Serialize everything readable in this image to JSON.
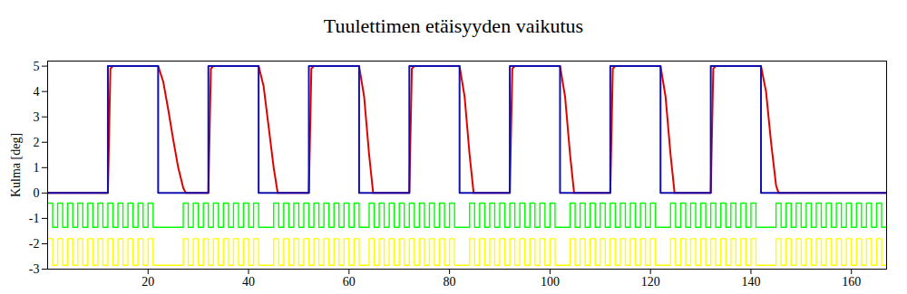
{
  "chart_data": {
    "type": "line",
    "title": "Tuulettimen etäisyyden vaikutus",
    "ylabel": "Kulma [deg]",
    "xlim": [
      0,
      167
    ],
    "xticks": [
      20,
      40,
      60,
      80,
      100,
      120,
      140,
      160
    ],
    "ylim": [
      -3,
      5.2
    ],
    "yticks": [
      -3,
      -2,
      -1,
      0,
      1,
      2,
      3,
      4,
      5
    ],
    "grid": false,
    "series": [
      {
        "color": "#e00000",
        "line_style": "solid",
        "x": [
          0,
          12,
          12.5,
          13,
          22,
          23,
          24,
          25,
          26,
          27,
          27.5,
          32,
          32.5,
          33,
          42,
          43,
          44,
          45,
          45.8,
          52,
          52.5,
          53,
          62,
          63,
          64,
          64.8,
          72,
          72.5,
          73,
          82,
          83,
          84,
          84.8,
          92,
          92.5,
          93,
          102,
          103,
          104,
          104.8,
          112,
          112.5,
          113,
          122,
          123,
          124,
          124.8,
          132,
          132.5,
          133,
          142,
          143,
          144,
          145,
          145.5,
          167
        ],
        "values": [
          0,
          0,
          4.9,
          5,
          5,
          4.4,
          3.3,
          2.1,
          1,
          0.2,
          0,
          0,
          4.9,
          5,
          5,
          4.2,
          2.6,
          1,
          0,
          0,
          4.9,
          5,
          5,
          3.8,
          1.5,
          0,
          0,
          4.9,
          5,
          5,
          3.8,
          1.5,
          0,
          0,
          4.9,
          5,
          5,
          3.8,
          1.5,
          0,
          0,
          4.9,
          5,
          5,
          3.8,
          1.5,
          0,
          0,
          4.9,
          5,
          5,
          4,
          2,
          0.3,
          0,
          0
        ]
      },
      {
        "color": "#1010b0",
        "line_style": "solid",
        "x": [
          0,
          12,
          12,
          22,
          22,
          32,
          32,
          42,
          42,
          52,
          52,
          62,
          62,
          72,
          72,
          82,
          82,
          92,
          92,
          102,
          102,
          112,
          112,
          122,
          122,
          132,
          132,
          142,
          142,
          167
        ],
        "values": [
          0,
          0,
          5,
          5,
          0,
          0,
          5,
          5,
          0,
          0,
          5,
          5,
          0,
          0,
          5,
          5,
          0,
          0,
          5,
          5,
          0,
          0,
          5,
          5,
          0,
          0,
          5,
          5,
          0,
          0
        ]
      },
      {
        "color": "#00ff00",
        "line_style": "step",
        "x": [
          0,
          1,
          2,
          3,
          4,
          5,
          6,
          7,
          8,
          9,
          10,
          11,
          12,
          13,
          14,
          15,
          16,
          17,
          18,
          19,
          20,
          21,
          22,
          27,
          28,
          29,
          30,
          31,
          32,
          33,
          34,
          35,
          36,
          37,
          38,
          39,
          40,
          41,
          42,
          45,
          46,
          47,
          48,
          49,
          50,
          51,
          52,
          53,
          54,
          55,
          56,
          57,
          58,
          59,
          60,
          61,
          62,
          64,
          65,
          66,
          67,
          68,
          69,
          70,
          71,
          72,
          73,
          74,
          75,
          76,
          77,
          78,
          79,
          80,
          81,
          82,
          84,
          85,
          86,
          87,
          88,
          89,
          90,
          91,
          92,
          93,
          94,
          95,
          96,
          97,
          98,
          99,
          100,
          101,
          102,
          104,
          105,
          106,
          107,
          108,
          109,
          110,
          111,
          112,
          113,
          114,
          115,
          116,
          117,
          118,
          119,
          120,
          121,
          122,
          124,
          125,
          126,
          127,
          128,
          129,
          130,
          131,
          132,
          133,
          134,
          135,
          136,
          137,
          138,
          139,
          140,
          141,
          142,
          145,
          146,
          147,
          148,
          149,
          150,
          151,
          152,
          153,
          154,
          155,
          156,
          157,
          158,
          159,
          160,
          161,
          162,
          163,
          164,
          165,
          166,
          167
        ],
        "values": [
          -0.4,
          -1.35,
          -0.4,
          -1.35,
          -0.4,
          -1.35,
          -0.4,
          -1.35,
          -0.4,
          -1.35,
          -0.4,
          -1.35,
          -0.4,
          -1.35,
          -0.4,
          -1.35,
          -0.4,
          -1.35,
          -0.4,
          -1.35,
          -0.4,
          -1.35,
          -1.35,
          -0.4,
          -1.35,
          -0.4,
          -1.35,
          -0.4,
          -1.35,
          -0.4,
          -1.35,
          -0.4,
          -1.35,
          -0.4,
          -1.35,
          -0.4,
          -1.35,
          -0.4,
          -1.35,
          -0.4,
          -1.35,
          -0.4,
          -1.35,
          -0.4,
          -1.35,
          -0.4,
          -1.35,
          -0.4,
          -1.35,
          -0.4,
          -1.35,
          -0.4,
          -1.35,
          -0.4,
          -1.35,
          -0.4,
          -1.35,
          -0.4,
          -1.35,
          -0.4,
          -1.35,
          -0.4,
          -1.35,
          -0.4,
          -1.35,
          -0.4,
          -1.35,
          -0.4,
          -1.35,
          -0.4,
          -1.35,
          -0.4,
          -1.35,
          -0.4,
          -1.35,
          -1.35,
          -0.4,
          -1.35,
          -0.4,
          -1.35,
          -0.4,
          -1.35,
          -0.4,
          -1.35,
          -0.4,
          -1.35,
          -0.4,
          -1.35,
          -0.4,
          -1.35,
          -0.4,
          -1.35,
          -0.4,
          -1.35,
          -1.35,
          -0.4,
          -1.35,
          -0.4,
          -1.35,
          -0.4,
          -1.35,
          -0.4,
          -1.35,
          -0.4,
          -1.35,
          -0.4,
          -1.35,
          -0.4,
          -1.35,
          -0.4,
          -1.35,
          -0.4,
          -1.35,
          -1.35,
          -0.4,
          -1.35,
          -0.4,
          -1.35,
          -0.4,
          -1.35,
          -0.4,
          -1.35,
          -0.4,
          -1.35,
          -0.4,
          -1.35,
          -0.4,
          -1.35,
          -0.4,
          -1.35,
          -0.4,
          -1.35,
          -1.35,
          -0.4,
          -1.35,
          -0.4,
          -1.35,
          -0.4,
          -1.35,
          -0.4,
          -1.35,
          -0.4,
          -1.35,
          -0.4,
          -1.35,
          -0.4,
          -1.35,
          -0.4,
          -1.35,
          -0.4,
          -1.35,
          -0.4,
          -1.35,
          -0.4,
          -1.35,
          -1.35
        ]
      },
      {
        "color": "#ffff00",
        "line_style": "step",
        "x": [
          0,
          1,
          2,
          3,
          4,
          5,
          6,
          7,
          8,
          9,
          10,
          11,
          12,
          13,
          14,
          15,
          16,
          17,
          18,
          19,
          20,
          21,
          22,
          27,
          28,
          29,
          30,
          31,
          32,
          33,
          34,
          35,
          36,
          37,
          38,
          39,
          40,
          41,
          42,
          45,
          46,
          47,
          48,
          49,
          50,
          51,
          52,
          53,
          54,
          55,
          56,
          57,
          58,
          59,
          60,
          61,
          62,
          64,
          65,
          66,
          67,
          68,
          69,
          70,
          71,
          72,
          73,
          74,
          75,
          76,
          77,
          78,
          79,
          80,
          81,
          82,
          84,
          85,
          86,
          87,
          88,
          89,
          90,
          91,
          92,
          93,
          94,
          95,
          96,
          97,
          98,
          99,
          100,
          101,
          102,
          104,
          105,
          106,
          107,
          108,
          109,
          110,
          111,
          112,
          113,
          114,
          115,
          116,
          117,
          118,
          119,
          120,
          121,
          122,
          124,
          125,
          126,
          127,
          128,
          129,
          130,
          131,
          132,
          133,
          134,
          135,
          136,
          137,
          138,
          139,
          140,
          141,
          142,
          145,
          146,
          147,
          148,
          149,
          150,
          151,
          152,
          153,
          154,
          155,
          156,
          157,
          158,
          159,
          160,
          161,
          162,
          163,
          164,
          165,
          166,
          167
        ],
        "values": [
          -1.8,
          -2.85,
          -1.8,
          -2.85,
          -1.8,
          -2.85,
          -1.8,
          -2.85,
          -1.8,
          -2.85,
          -1.8,
          -2.85,
          -1.8,
          -2.85,
          -1.8,
          -2.85,
          -1.8,
          -2.85,
          -1.8,
          -2.85,
          -1.8,
          -2.85,
          -2.85,
          -1.8,
          -2.85,
          -1.8,
          -2.85,
          -1.8,
          -2.85,
          -1.8,
          -2.85,
          -1.8,
          -2.85,
          -1.8,
          -2.85,
          -1.8,
          -2.85,
          -1.8,
          -2.85,
          -1.8,
          -2.85,
          -1.8,
          -2.85,
          -1.8,
          -2.85,
          -1.8,
          -2.85,
          -1.8,
          -2.85,
          -1.8,
          -2.85,
          -1.8,
          -2.85,
          -1.8,
          -2.85,
          -1.8,
          -2.85,
          -1.8,
          -2.85,
          -1.8,
          -2.85,
          -1.8,
          -2.85,
          -1.8,
          -2.85,
          -1.8,
          -2.85,
          -1.8,
          -2.85,
          -1.8,
          -2.85,
          -1.8,
          -2.85,
          -1.8,
          -2.85,
          -2.85,
          -1.8,
          -2.85,
          -1.8,
          -2.85,
          -1.8,
          -2.85,
          -1.8,
          -2.85,
          -1.8,
          -2.85,
          -1.8,
          -2.85,
          -1.8,
          -2.85,
          -1.8,
          -2.85,
          -1.8,
          -2.85,
          -2.85,
          -1.8,
          -2.85,
          -1.8,
          -2.85,
          -1.8,
          -2.85,
          -1.8,
          -2.85,
          -1.8,
          -2.85,
          -1.8,
          -2.85,
          -1.8,
          -2.85,
          -1.8,
          -2.85,
          -1.8,
          -2.85,
          -2.85,
          -1.8,
          -2.85,
          -1.8,
          -2.85,
          -1.8,
          -2.85,
          -1.8,
          -2.85,
          -1.8,
          -2.85,
          -1.8,
          -2.85,
          -1.8,
          -2.85,
          -1.8,
          -2.85,
          -1.8,
          -2.85,
          -2.85,
          -1.8,
          -2.85,
          -1.8,
          -2.85,
          -1.8,
          -2.85,
          -1.8,
          -2.85,
          -1.8,
          -2.85,
          -1.8,
          -2.85,
          -1.8,
          -2.85,
          -1.8,
          -2.85,
          -1.8,
          -2.85,
          -1.8,
          -2.85,
          -1.8,
          -2.85,
          -2.85
        ]
      }
    ]
  }
}
